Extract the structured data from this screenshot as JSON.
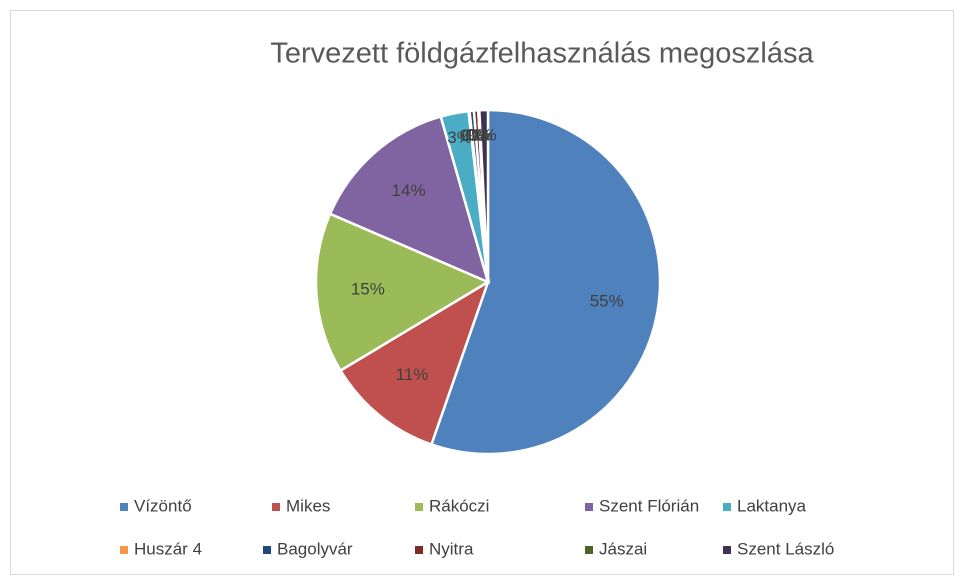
{
  "chart_data": {
    "type": "pie",
    "title": "Tervezett földgázfelhasználás megoszlása",
    "categories": [
      "Vízöntő",
      "Mikes",
      "Rákóczi",
      "Szent Flórián",
      "Laktanya",
      "Huszár 4",
      "Bagolyvár",
      "Nyitra",
      "Jászai",
      "Szent László"
    ],
    "values": [
      55,
      11,
      15,
      14,
      2.6,
      0.1,
      0.4,
      0.4,
      0.1,
      0.8
    ],
    "value_labels": [
      "55%",
      "11%",
      "15%",
      "14%",
      "3%",
      "0%",
      "0%",
      "0%",
      "0%",
      "1%"
    ],
    "colors": [
      "#4f81bd",
      "#c0504d",
      "#9bbb59",
      "#8064a2",
      "#4bacc6",
      "#f79646",
      "#1f497d",
      "#7b2c2a",
      "#4f6228",
      "#3f3151"
    ],
    "legend": "bottom"
  }
}
